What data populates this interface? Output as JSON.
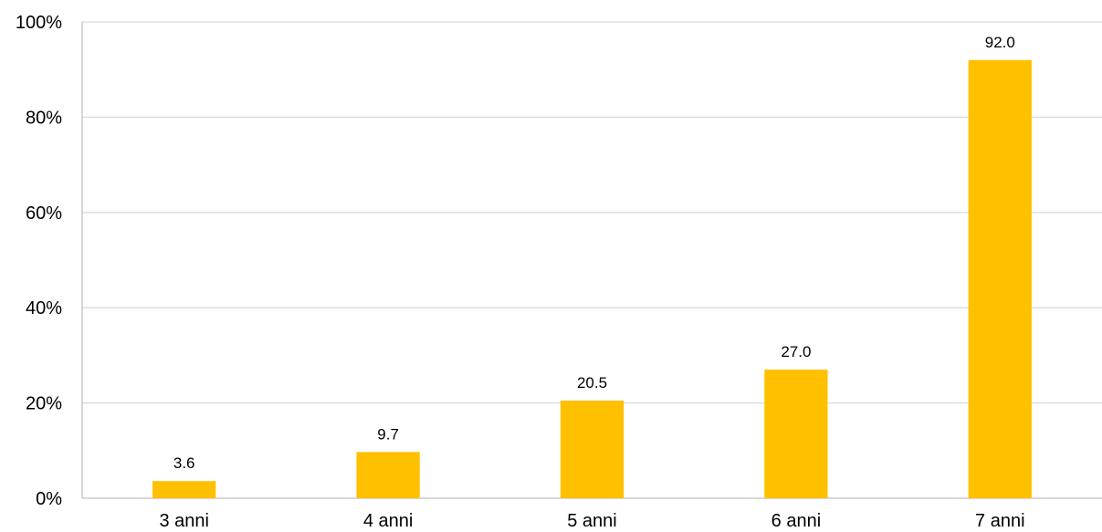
{
  "chart_data": {
    "type": "bar",
    "title": "",
    "xlabel": "",
    "ylabel": "",
    "categories": [
      "3 anni",
      "4 anni",
      "5 anni",
      "6 anni",
      "7 anni"
    ],
    "values": [
      3.6,
      9.7,
      20.5,
      27.0,
      92.0
    ],
    "value_labels": [
      "3.6",
      "9.7",
      "20.5",
      "27.0",
      "92.0"
    ],
    "ylim": [
      0,
      100
    ],
    "y_ticks": [
      0,
      20,
      40,
      60,
      80,
      100
    ],
    "y_tick_labels": [
      "0%",
      "20%",
      "40%",
      "60%",
      "80%",
      "100%"
    ],
    "grid": true,
    "legend": "none",
    "colors": {
      "bar": "#FFC000",
      "grid": "#D9D9D9",
      "axis": "#BFBFBF",
      "text": "#000000"
    }
  }
}
